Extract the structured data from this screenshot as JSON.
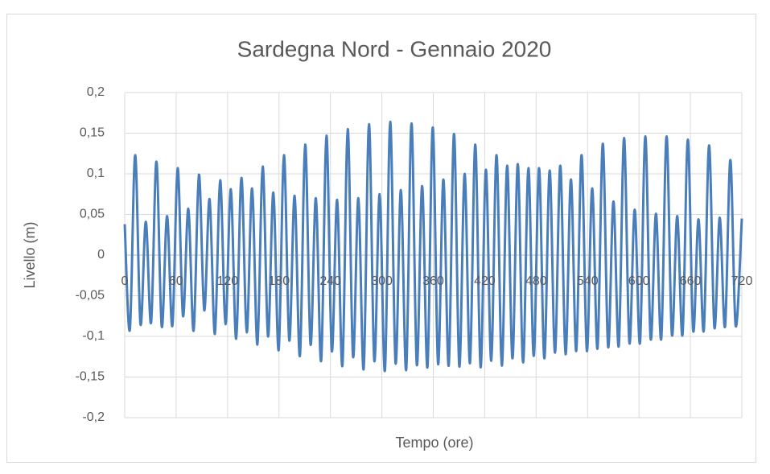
{
  "chart_data": {
    "type": "line",
    "title": "Sardegna Nord - Gennaio 2020",
    "x_label": "Tempo (ore)",
    "y_label": "Livello (m)",
    "x": [
      0,
      6,
      12.2,
      18.4,
      24.6,
      30.8,
      37,
      43.2,
      49.4,
      55.6,
      61.8,
      68,
      74.2,
      80.4,
      86.6,
      92.8,
      99,
      105.2,
      111.4,
      117.6,
      123.8,
      130,
      136.2,
      142.4,
      148.6,
      154.8,
      161,
      167.2,
      173.4,
      179.6,
      185.8,
      192,
      198.2,
      204.4,
      210.6,
      216.8,
      223,
      229.2,
      235.4,
      241.6,
      247.8,
      254,
      260.2,
      266.4,
      272.6,
      278.8,
      285,
      291.2,
      297.4,
      303.6,
      309.8,
      316,
      322.2,
      328.4,
      334.6,
      340.8,
      347,
      353.2,
      359.4,
      365.6,
      371.8,
      378,
      384.2,
      390.4,
      396.6,
      402.8,
      409,
      415.2,
      421.4,
      427.6,
      433.8,
      440,
      446.2,
      452.4,
      458.6,
      464.8,
      471,
      477.2,
      483.4,
      489.6,
      495.8,
      502,
      508.2,
      514.4,
      520.6,
      526.8,
      533,
      539.2,
      545.4,
      551.6,
      557.8,
      564,
      570.2,
      576.4,
      582.6,
      588.8,
      595,
      601.2,
      607.4,
      613.6,
      619.8,
      626,
      632.2,
      638.4,
      644.6,
      650.8,
      657,
      663.2,
      669.4,
      675.6,
      681.8,
      688,
      694.2,
      700.4,
      706.6,
      712.8,
      720
    ],
    "series": [
      {
        "name": "Livello",
        "color": "#4a7ebb",
        "values": [
          0.038,
          -0.092,
          0.123,
          -0.085,
          0.041,
          -0.083,
          0.115,
          -0.088,
          0.048,
          -0.087,
          0.107,
          -0.075,
          0.057,
          -0.093,
          0.099,
          -0.068,
          0.069,
          -0.097,
          0.092,
          -0.085,
          0.081,
          -0.103,
          0.095,
          -0.095,
          0.082,
          -0.11,
          0.109,
          -0.1,
          0.077,
          -0.117,
          0.123,
          -0.105,
          0.073,
          -0.124,
          0.136,
          -0.11,
          0.07,
          -0.13,
          0.147,
          -0.118,
          0.068,
          -0.136,
          0.155,
          -0.125,
          0.07,
          -0.14,
          0.161,
          -0.13,
          0.075,
          -0.142,
          0.164,
          -0.133,
          0.08,
          -0.141,
          0.162,
          -0.135,
          0.085,
          -0.138,
          0.157,
          -0.134,
          0.093,
          -0.136,
          0.149,
          -0.137,
          0.1,
          -0.133,
          0.136,
          -0.138,
          0.105,
          -0.13,
          0.123,
          -0.136,
          0.11,
          -0.127,
          0.112,
          -0.132,
          0.107,
          -0.124,
          0.107,
          -0.127,
          0.104,
          -0.12,
          0.11,
          -0.122,
          0.093,
          -0.118,
          0.123,
          -0.118,
          0.082,
          -0.115,
          0.137,
          -0.113,
          0.066,
          -0.112,
          0.144,
          -0.108,
          0.056,
          -0.108,
          0.146,
          -0.103,
          0.051,
          -0.103,
          0.146,
          -0.098,
          0.048,
          -0.098,
          0.142,
          -0.093,
          0.044,
          -0.093,
          0.135,
          -0.089,
          0.046,
          -0.088,
          0.117,
          -0.087,
          0.045
        ]
      }
    ],
    "xlim": [
      0,
      720
    ],
    "xticks": [
      0,
      60,
      120,
      180,
      240,
      300,
      360,
      420,
      480,
      540,
      600,
      660,
      720
    ],
    "ylim": [
      -0.2,
      0.2
    ],
    "yticks": [
      {
        "value": -0.2,
        "label": "-0,2"
      },
      {
        "value": -0.15,
        "label": "-0,15"
      },
      {
        "value": -0.1,
        "label": "-0,1"
      },
      {
        "value": -0.05,
        "label": "-0,05"
      },
      0,
      {
        "value": 0.05,
        "label": "0,05"
      },
      {
        "value": 0.1,
        "label": "0,1"
      },
      {
        "value": 0.15,
        "label": "0,15"
      },
      {
        "value": 0.2,
        "label": "0,2"
      }
    ],
    "grid": true
  }
}
